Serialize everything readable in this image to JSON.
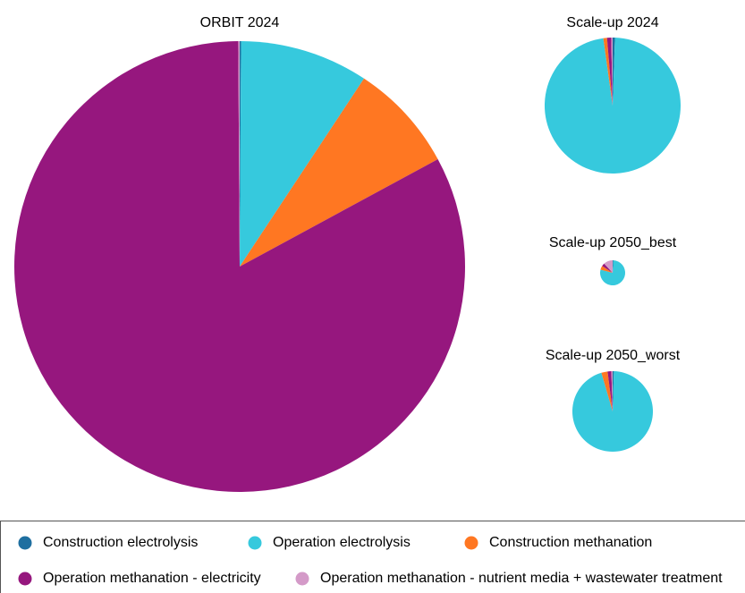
{
  "chart_data": [
    {
      "type": "pie",
      "title": "ORBIT 2024",
      "values": [
        0.1,
        9.2,
        7.8,
        82.8,
        0.1
      ]
    },
    {
      "type": "pie",
      "title": "Scale-up 2024",
      "values": [
        0.05,
        8.85,
        0.08,
        0.09,
        0.03
      ]
    },
    {
      "type": "pie",
      "title": "Scale-up 2050_best",
      "values": [
        0.003,
        0.242,
        0.016,
        0.012,
        0.037
      ]
    },
    {
      "type": "pie",
      "title": "Scale-up 2050_worst",
      "values": [
        0.016,
        3.03,
        0.08,
        0.048,
        0.016
      ]
    }
  ],
  "legend": {
    "labels": [
      "Construction electrolysis",
      "Operation electrolysis",
      "Construction methanation",
      "Operation methanation - electricity",
      "Operation methanation - nutrient media + wastewater treatment"
    ],
    "colors": [
      "#1f6fa0",
      "#36c9dd",
      "#ff7722",
      "#96177e",
      "#d49ac8"
    ]
  }
}
